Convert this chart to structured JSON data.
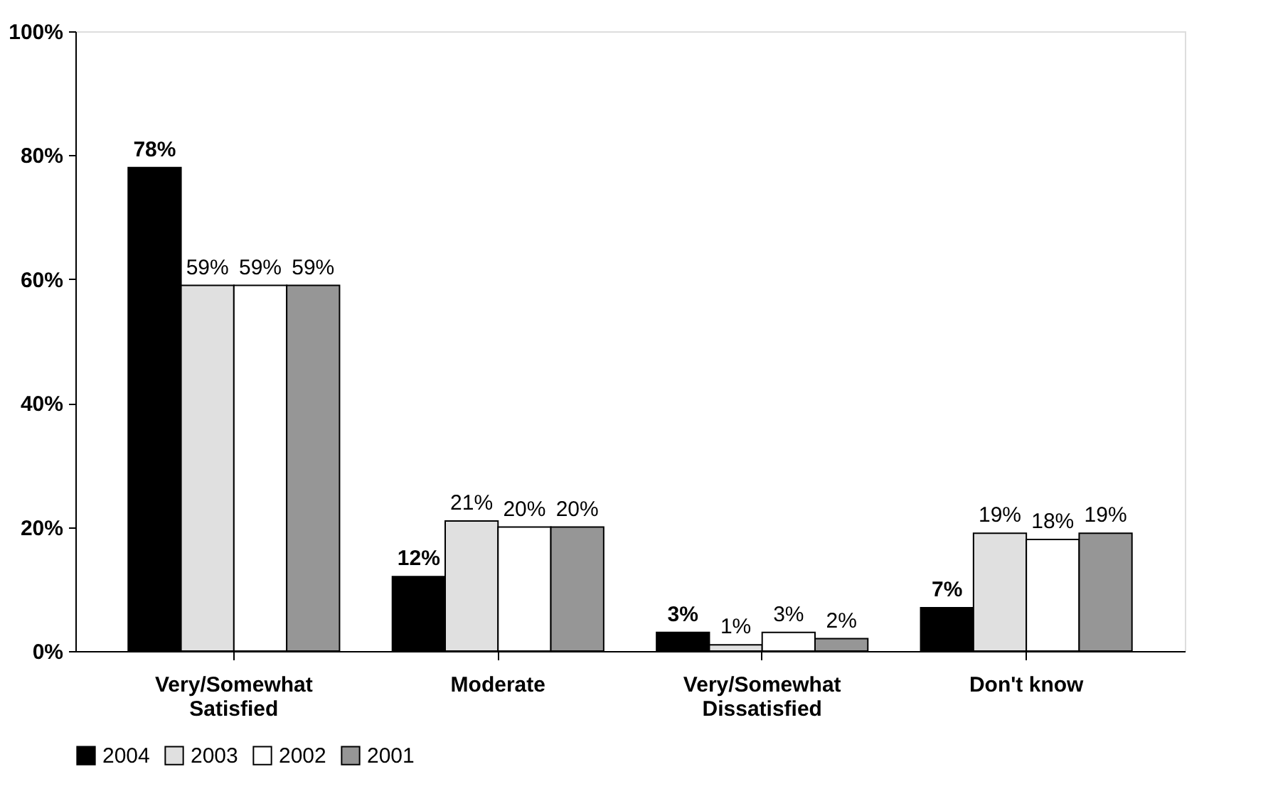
{
  "chart_data": {
    "type": "bar",
    "categories": [
      "Very/Somewhat\nSatisfied",
      "Moderate",
      "Very/Somewhat\nDissatisfied",
      "Don't know"
    ],
    "series": [
      {
        "name": "2004",
        "color": "#000000",
        "values": [
          78,
          12,
          3,
          7
        ],
        "value_labels": [
          "78%",
          "12%",
          "3%",
          "7%"
        ]
      },
      {
        "name": "2003",
        "color": "#e0e0e0",
        "values": [
          59,
          21,
          1,
          19
        ],
        "value_labels": [
          "59%",
          "21%",
          "1%",
          "19%"
        ]
      },
      {
        "name": "2002",
        "color": "#ffffff",
        "values": [
          59,
          20,
          3,
          18
        ],
        "value_labels": [
          "59%",
          "20%",
          "3%",
          "18%"
        ]
      },
      {
        "name": "2001",
        "color": "#969696",
        "values": [
          59,
          20,
          2,
          19
        ],
        "value_labels": [
          "59%",
          "20%",
          "2%",
          "19%"
        ]
      }
    ],
    "ylim": [
      0,
      100
    ],
    "yticks": [
      {
        "value": 0,
        "label": "0%"
      },
      {
        "value": 20,
        "label": "20%"
      },
      {
        "value": 40,
        "label": "40%"
      },
      {
        "value": 60,
        "label": "60%"
      },
      {
        "value": 80,
        "label": "80%"
      },
      {
        "value": 100,
        "label": "100%"
      }
    ],
    "grid": false,
    "legend": "bottom"
  }
}
